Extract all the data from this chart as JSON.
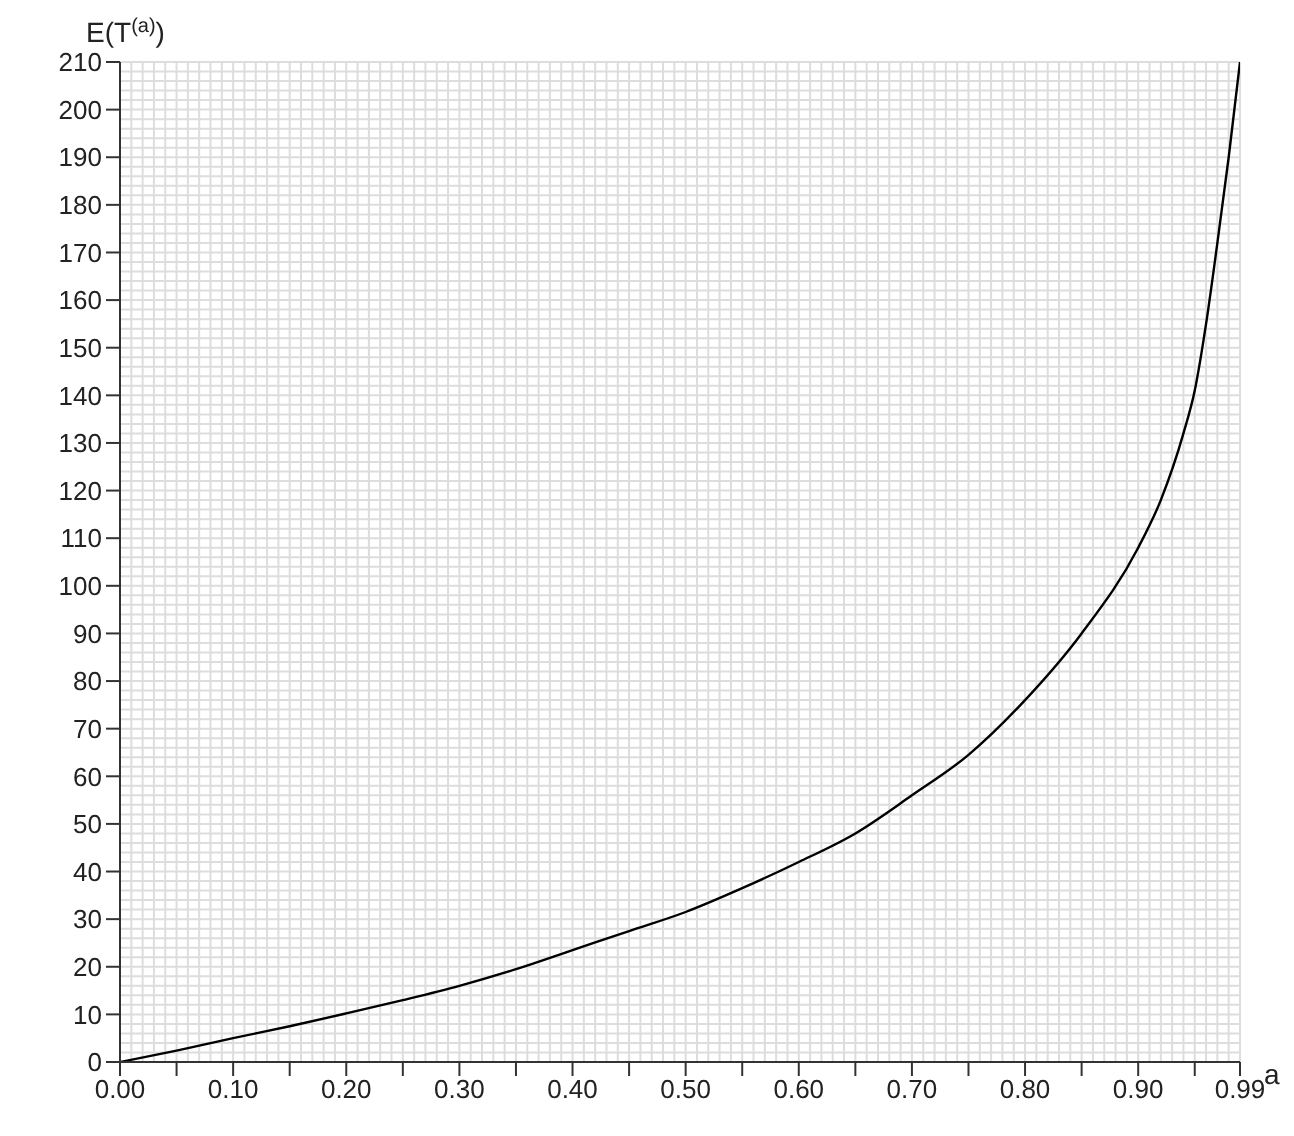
{
  "chart_data": {
    "type": "line",
    "xlabel": "a",
    "ylabel": "E(T$^{(a)}$)",
    "x": [
      0,
      0.05,
      0.1,
      0.15,
      0.2,
      0.25,
      0.3,
      0.35,
      0.4,
      0.45,
      0.5,
      0.55,
      0.6,
      0.65,
      0.7,
      0.75,
      0.8,
      0.85,
      0.9,
      0.92,
      0.94,
      0.95,
      0.96,
      0.97,
      0.98,
      0.99
    ],
    "series": [
      {
        "color": "#000000",
        "values": [
          0,
          2.4,
          5,
          7.5,
          10.2,
          13,
          16,
          19.5,
          23.5,
          27.5,
          31.5,
          36.5,
          42,
          48,
          56,
          64.5,
          76,
          90,
          108,
          118,
          132,
          141,
          155,
          172,
          190,
          210
        ]
      }
    ],
    "xlim": [
      0,
      0.99
    ],
    "xticks": [
      {
        "value": 0,
        "label": "0.00"
      },
      {
        "value": 0.05,
        "label": null
      },
      {
        "value": 0.1,
        "label": "0.10"
      },
      {
        "value": 0.15,
        "label": null
      },
      {
        "value": 0.2,
        "label": "0.20"
      },
      {
        "value": 0.25,
        "label": null
      },
      {
        "value": 0.3,
        "label": "0.30"
      },
      {
        "value": 0.35,
        "label": null
      },
      {
        "value": 0.4,
        "label": "0.40"
      },
      {
        "value": 0.45,
        "label": null
      },
      {
        "value": 0.5,
        "label": "0.50"
      },
      {
        "value": 0.55,
        "label": null
      },
      {
        "value": 0.6,
        "label": "0.60"
      },
      {
        "value": 0.65,
        "label": null
      },
      {
        "value": 0.7,
        "label": "0.70"
      },
      {
        "value": 0.75,
        "label": null
      },
      {
        "value": 0.8,
        "label": "0.80"
      },
      {
        "value": 0.85,
        "label": null
      },
      {
        "value": 0.9,
        "label": "0.90"
      },
      {
        "value": 0.95,
        "label": null
      },
      {
        "value": 0.99,
        "label": "0.99"
      }
    ],
    "ylim": [
      0,
      210
    ],
    "yticks": [
      0,
      10,
      20,
      30,
      40,
      50,
      60,
      70,
      80,
      90,
      100,
      110,
      120,
      130,
      140,
      150,
      160,
      170,
      180,
      190,
      200,
      210
    ],
    "grid": true,
    "marker": "none",
    "line_style": "solid"
  }
}
